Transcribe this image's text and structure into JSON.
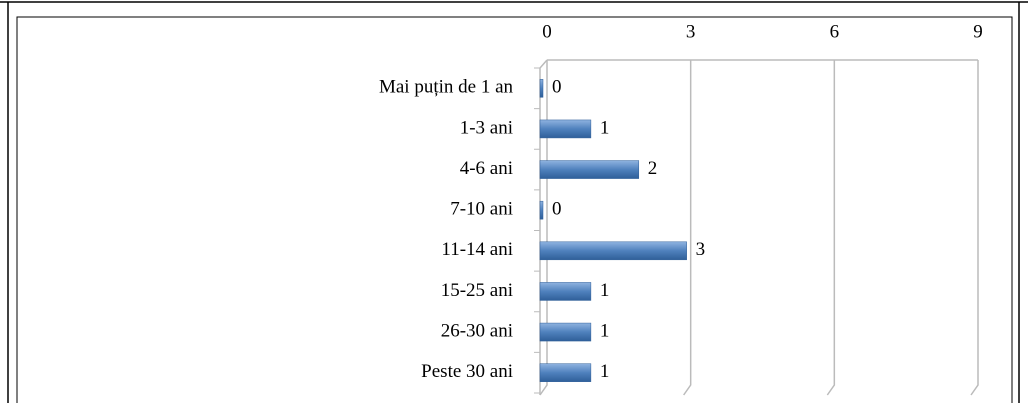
{
  "chart_data": {
    "type": "bar",
    "orientation": "horizontal",
    "categories": [
      "Mai puțin de 1 an",
      "1-3 ani",
      "4-6 ani",
      "7-10 ani",
      "11-14 ani",
      "15-25 ani",
      "26-30 ani",
      "Peste 30 ani"
    ],
    "values": [
      0,
      1,
      2,
      0,
      3,
      1,
      1,
      1
    ],
    "color": "#4f81bd",
    "xlim": [
      0,
      9
    ],
    "xticks": [
      0,
      3,
      6,
      9
    ],
    "grid": true
  }
}
